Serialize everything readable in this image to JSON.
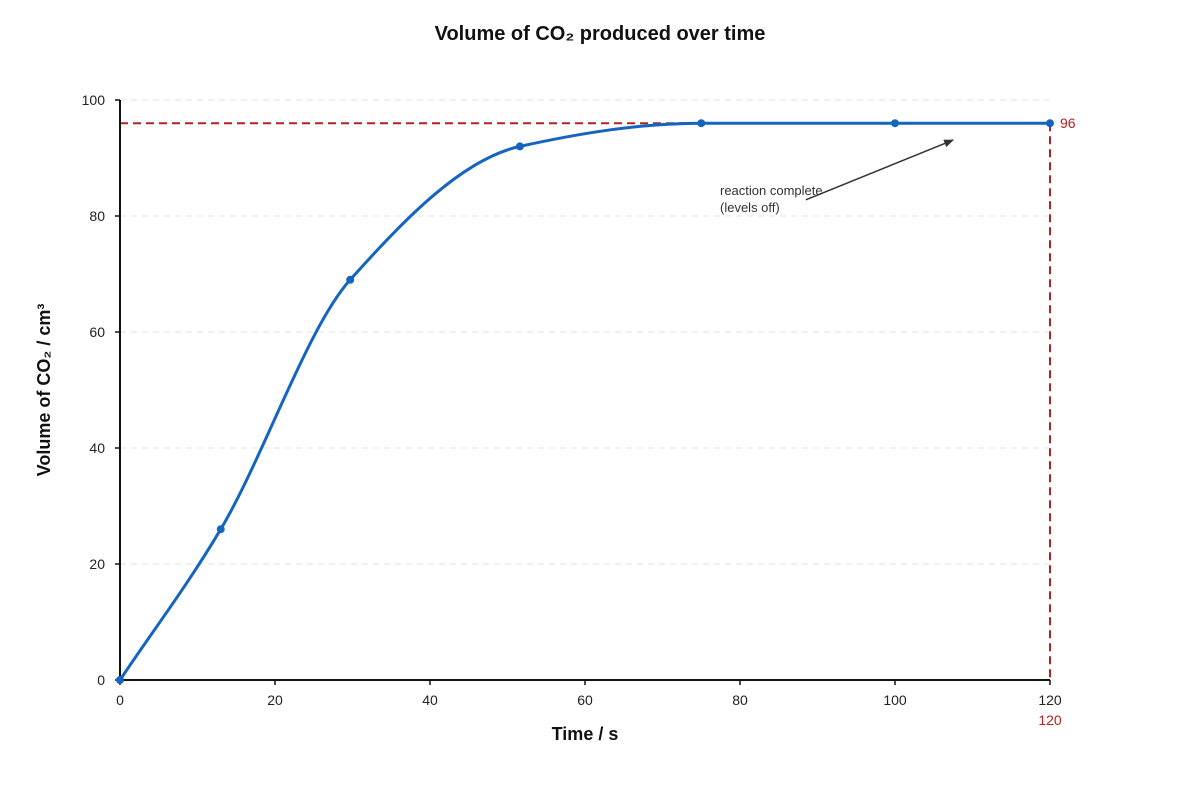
{
  "chart_data": {
    "type": "line",
    "title": "Volume of CO₂ produced over time",
    "xlabel": "Time / s",
    "ylabel": "Volume of CO₂ / cm³",
    "xlim": [
      0,
      120
    ],
    "ylim": [
      0,
      100
    ],
    "x_ticks": [
      "0",
      "20",
      "40",
      "60",
      "80",
      "100",
      "120"
    ],
    "y_ticks": [
      "0",
      "20",
      "40",
      "60",
      "80",
      "100"
    ],
    "grid": "horizontal dashed",
    "series": [
      {
        "color": "#1565c0",
        "points": [
          {
            "x": 0,
            "y": 0
          },
          {
            "x": 13,
            "y": 26
          },
          {
            "x": 29.7,
            "y": 69
          },
          {
            "x": 51.6,
            "y": 92
          },
          {
            "x": 75,
            "y": 96
          },
          {
            "x": 100,
            "y": 96
          },
          {
            "x": 120,
            "y": 96
          }
        ]
      }
    ],
    "reference_lines": {
      "color": "#b22222",
      "y_value": 96,
      "y_label": "96",
      "x_value": 120,
      "x_label": "120"
    },
    "annotation": {
      "lines": [
        "reaction complete",
        "(levels off)"
      ],
      "arrow_from": {
        "x": 88.5,
        "y": 82.8
      },
      "arrow_to": {
        "x": 107.5,
        "y": 93.1
      }
    }
  }
}
